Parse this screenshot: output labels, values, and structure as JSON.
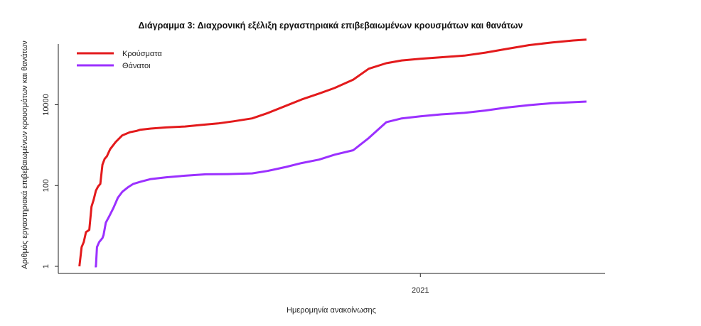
{
  "chart_data": {
    "type": "line",
    "title": "Διάγραμμα 3: Διαχρονική εξέλιξη εργαστηριακά επιβεβαιωμένων κρουσμάτων και θανάτων",
    "xlabel": "Ημερομηνία ανακοίνωσης",
    "ylabel": "Αριθμός εργαστηριακά επιβεβαιωμένων κρουσμάτων και θανάτων",
    "y_scale": "log10",
    "ylim": [
      1,
      250000
    ],
    "xlim": [
      "2020-02-12",
      "2021-06-14"
    ],
    "y_ticks": [
      1,
      100,
      10000
    ],
    "y_tick_labels": [
      "1",
      "100",
      "10000"
    ],
    "x_ticks": [
      "2021-01-01"
    ],
    "x_tick_labels": [
      "2021"
    ],
    "grid": false,
    "legend_position": "top-left",
    "series": [
      {
        "name": "Κρούσματα",
        "color": "#e31a1c",
        "points": [
          [
            "2020-02-26",
            1
          ],
          [
            "2020-02-28",
            3
          ],
          [
            "2020-03-01",
            4
          ],
          [
            "2020-03-03",
            7
          ],
          [
            "2020-03-06",
            8
          ],
          [
            "2020-03-08",
            30
          ],
          [
            "2020-03-10",
            45
          ],
          [
            "2020-03-12",
            75
          ],
          [
            "2020-03-14",
            95
          ],
          [
            "2020-03-16",
            110
          ],
          [
            "2020-03-18",
            330
          ],
          [
            "2020-03-20",
            460
          ],
          [
            "2020-03-22",
            530
          ],
          [
            "2020-03-25",
            800
          ],
          [
            "2020-03-30",
            1200
          ],
          [
            "2020-04-05",
            1750
          ],
          [
            "2020-04-12",
            2100
          ],
          [
            "2020-04-18",
            2250
          ],
          [
            "2020-04-21",
            2400
          ],
          [
            "2020-05-01",
            2580
          ],
          [
            "2020-05-15",
            2750
          ],
          [
            "2020-06-01",
            2900
          ],
          [
            "2020-06-15",
            3150
          ],
          [
            "2020-07-01",
            3450
          ],
          [
            "2020-07-15",
            3900
          ],
          [
            "2020-08-01",
            4600
          ],
          [
            "2020-08-15",
            6200
          ],
          [
            "2020-09-01",
            9500
          ],
          [
            "2020-09-15",
            13500
          ],
          [
            "2020-10-01",
            19000
          ],
          [
            "2020-10-15",
            26000
          ],
          [
            "2020-11-01",
            42000
          ],
          [
            "2020-11-15",
            78000
          ],
          [
            "2020-12-01",
            107000
          ],
          [
            "2020-12-15",
            125000
          ],
          [
            "2021-01-01",
            138000
          ],
          [
            "2021-01-20",
            150000
          ],
          [
            "2021-02-10",
            165000
          ],
          [
            "2021-03-01",
            195000
          ],
          [
            "2021-03-20",
            240000
          ],
          [
            "2021-04-10",
            300000
          ],
          [
            "2021-05-01",
            350000
          ],
          [
            "2021-05-20",
            390000
          ],
          [
            "2021-06-01",
            410000
          ]
        ]
      },
      {
        "name": "Θάνατοι",
        "color": "#9b30ff",
        "points": [
          [
            "2020-03-11",
            1
          ],
          [
            "2020-03-12",
            1
          ],
          [
            "2020-03-13",
            3
          ],
          [
            "2020-03-15",
            4
          ],
          [
            "2020-03-18",
            5
          ],
          [
            "2020-03-19",
            6
          ],
          [
            "2020-03-21",
            12
          ],
          [
            "2020-03-24",
            17
          ],
          [
            "2020-03-28",
            28
          ],
          [
            "2020-04-01",
            50
          ],
          [
            "2020-04-05",
            70
          ],
          [
            "2020-04-10",
            90
          ],
          [
            "2020-04-15",
            110
          ],
          [
            "2020-04-22",
            125
          ],
          [
            "2020-05-01",
            145
          ],
          [
            "2020-05-15",
            160
          ],
          [
            "2020-06-01",
            175
          ],
          [
            "2020-06-20",
            190
          ],
          [
            "2020-07-10",
            192
          ],
          [
            "2020-08-01",
            200
          ],
          [
            "2020-08-15",
            230
          ],
          [
            "2020-09-01",
            290
          ],
          [
            "2020-09-15",
            360
          ],
          [
            "2020-10-01",
            440
          ],
          [
            "2020-10-15",
            580
          ],
          [
            "2020-11-01",
            750
          ],
          [
            "2020-11-15",
            1500
          ],
          [
            "2020-12-01",
            3700
          ],
          [
            "2020-12-15",
            4600
          ],
          [
            "2021-01-01",
            5200
          ],
          [
            "2021-01-20",
            5800
          ],
          [
            "2021-02-10",
            6300
          ],
          [
            "2021-03-01",
            7200
          ],
          [
            "2021-03-20",
            8500
          ],
          [
            "2021-04-10",
            9800
          ],
          [
            "2021-05-01",
            11000
          ],
          [
            "2021-06-01",
            12000
          ]
        ]
      }
    ]
  }
}
